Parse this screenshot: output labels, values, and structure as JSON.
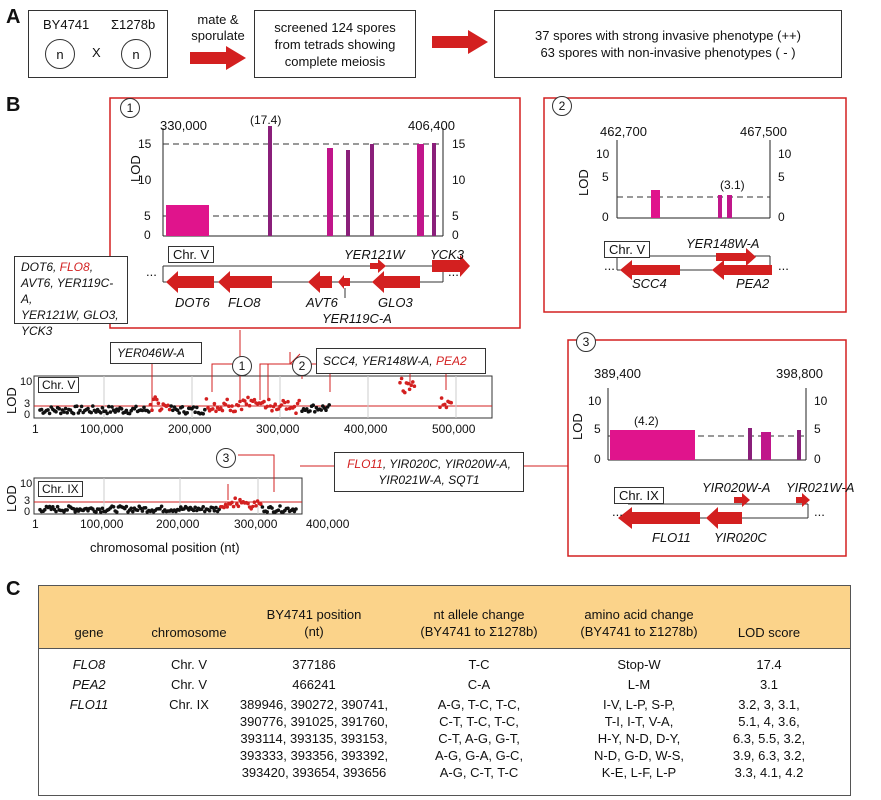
{
  "panels": {
    "a": "A",
    "b": "B",
    "c": "C"
  },
  "panel_a": {
    "strain1": "BY4741",
    "strain2": "Σ1278b",
    "cross": "X",
    "nucleus": "n",
    "arrow1_label": "mate &\nsporulate",
    "box2": "screened 124 spores\nfrom tetrads showing\ncomplete meiosis",
    "box3_line1": "37 spores with strong invasive phenotype (++)",
    "box3_line2": "63 spores with non-invasive phenotypes ( - )"
  },
  "inset1": {
    "num": "1",
    "left_pos": "330,000",
    "right_pos": "406,400",
    "peak_label": "(17.4)",
    "ylabel": "LOD",
    "chr": "Chr. V",
    "ticks": [
      "0",
      "5",
      "10",
      "15"
    ],
    "genes_top": [
      "YER121W",
      "YCK3"
    ],
    "genes_bottom": [
      "DOT6",
      "FLO8",
      "AVT6",
      "YER119C-A",
      "GLO3"
    ],
    "ellipsis": "..."
  },
  "inset2": {
    "num": "2",
    "left_pos": "462,700",
    "right_pos": "467,500",
    "peak_label": "(3.1)",
    "ylabel": "LOD",
    "chr": "Chr. V",
    "ticks": [
      "0",
      "5",
      "10"
    ],
    "genes_top": [
      "YER148W-A"
    ],
    "genes_bottom": [
      "SCC4",
      "PEA2"
    ],
    "ellipsis": "..."
  },
  "inset3": {
    "num": "3",
    "left_pos": "389,400",
    "right_pos": "398,800",
    "peak_label": "(4.2)",
    "ylabel": "LOD",
    "chr": "Chr. IX",
    "ticks": [
      "0",
      "5",
      "10"
    ],
    "genes_top": [
      "YIR020W-A",
      "YIR021W-A"
    ],
    "genes_bottom": [
      "FLO11",
      "YIR020C"
    ],
    "ellipsis": "..."
  },
  "callouts": {
    "c1_parts": [
      "DOT6, ",
      "FLO8",
      ",",
      "AVT6, YER119C-A,",
      "YER121W, GLO3,",
      "YCK3"
    ],
    "c_yer046": "YER046W-A",
    "c2_parts": [
      "SCC4, YER148W-A, ",
      "PEA2"
    ],
    "c3_parts": [
      "FLO11",
      ", YIR020C, YIR020W-A,",
      "YIR021W-A, SQT1"
    ]
  },
  "chrV": {
    "label": "Chr. V",
    "ylabel": "LOD",
    "yticks": [
      "10",
      "3",
      "0"
    ],
    "xticks": [
      "1",
      "100,000",
      "200,000",
      "300,000",
      "400,000",
      "500,000"
    ]
  },
  "chrIX": {
    "label": "Chr. IX",
    "ylabel": "LOD",
    "yticks": [
      "10",
      "3",
      "0"
    ],
    "xticks": [
      "1",
      "100,000",
      "200,000",
      "300,000",
      "400,000"
    ],
    "xlabel": "chromosomal position (nt)"
  },
  "markers": [
    "1",
    "2",
    "3"
  ],
  "table": {
    "headers": [
      "gene",
      "chromosome",
      "BY4741 position\n(nt)",
      "nt allele change\n(BY4741 to Σ1278b)",
      "amino acid change\n(BY4741 to Σ1278b)",
      "LOD score"
    ],
    "rows": [
      {
        "gene": "FLO8",
        "chr": "Chr. V",
        "pos": "377186",
        "nt": "T-C",
        "aa": "Stop-W",
        "lod": "17.4"
      },
      {
        "gene": "PEA2",
        "chr": "Chr. V",
        "pos": "466241",
        "nt": "C-A",
        "aa": "L-M",
        "lod": "3.1"
      },
      {
        "gene": "FLO11",
        "chr": "Chr. IX",
        "pos": "389946, 390272, 390741,\n390776, 391025, 391760,\n393114, 393135, 393153,\n393333, 393356, 393392,\n393420, 393654, 393656",
        "nt": "A-G, T-C, T-C,\nC-T, T-C, T-C,\nC-T, A-G, G-T,\nA-G, G-A, G-C,\nA-G, C-T, T-C",
        "aa": "I-V, L-P, S-P,\nT-I, I-T, V-A,\nH-Y, N-D, D-Y,\nN-D, G-D, W-S,\nK-E, L-F, L-P",
        "lod": "3.2, 3, 3.1,\n5.1, 4, 3.6,\n6.3, 5.5, 3.2,\n3.9, 6.3, 3.2,\n3.3, 4.1, 4.2"
      }
    ]
  },
  "colors": {
    "accent_red": "#d32020",
    "bar_magenta": "#e0148c",
    "bar_purple": "#8a1f7a",
    "header_orange": "#fbd38a"
  }
}
